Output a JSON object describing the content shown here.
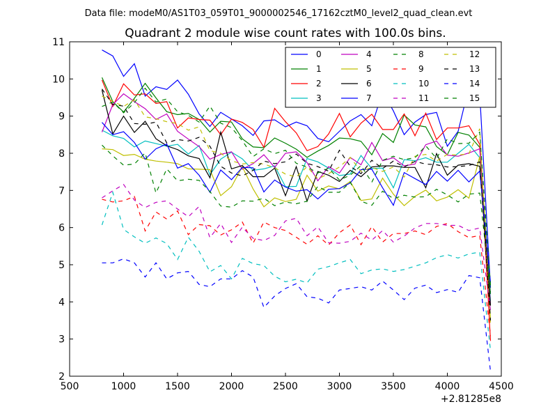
{
  "header": {
    "data_file": "Data file: modeM0/AS1T03_059T01_9000002546_17162cztM0_level2_quad_clean.evt"
  },
  "chart_data": {
    "type": "line",
    "title": "Quadrant 2 module wise count rates with 100.0s bins.",
    "xlabel": "",
    "ylabel": "",
    "x_offset_label": "+2.81285e8",
    "xlim": [
      500,
      4500
    ],
    "ylim": [
      2,
      11
    ],
    "xticks": [
      500,
      1000,
      1500,
      2000,
      2500,
      3000,
      3500,
      4000,
      4500
    ],
    "yticks": [
      2,
      3,
      4,
      5,
      6,
      7,
      8,
      9,
      10,
      11
    ],
    "x": [
      800,
      900,
      1000,
      1100,
      1200,
      1300,
      1400,
      1500,
      1600,
      1700,
      1800,
      1900,
      2000,
      2100,
      2200,
      2300,
      2400,
      2500,
      2600,
      2700,
      2800,
      2900,
      3000,
      3100,
      3200,
      3300,
      3400,
      3500,
      3600,
      3700,
      3800,
      3900,
      4000,
      4100,
      4200,
      4300,
      4400
    ],
    "legend_position": "upper-right",
    "grid": false,
    "series": [
      {
        "name": "0",
        "color": "#0000ff",
        "dash": "solid",
        "values": [
          10.78,
          10.62,
          10.07,
          10.41,
          9.54,
          9.79,
          9.72,
          9.97,
          9.59,
          9.06,
          8.72,
          9.1,
          8.92,
          8.74,
          8.48,
          8.87,
          8.9,
          8.71,
          8.84,
          8.74,
          8.4,
          8.31,
          8.59,
          8.87,
          9.04,
          8.74,
          9.66,
          9.14,
          8.5,
          8.84,
          9.04,
          9.1,
          8.19,
          8.59,
          9.79,
          9.61,
          4.38
        ]
      },
      {
        "name": "1",
        "color": "#008000",
        "dash": "solid",
        "values": [
          10.04,
          9.39,
          9.11,
          9.48,
          9.88,
          9.49,
          9.12,
          9.04,
          9.07,
          8.91,
          8.57,
          8.86,
          8.84,
          8.39,
          8.17,
          8.15,
          8.41,
          8.27,
          8.11,
          7.89,
          8.06,
          8.21,
          8.41,
          8.39,
          8.32,
          7.96,
          8.53,
          8.29,
          9.03,
          8.76,
          8.71,
          8.18,
          7.96,
          8.56,
          8.49,
          8.16,
          4.21
        ]
      },
      {
        "name": "2",
        "color": "#ff0000",
        "dash": "solid",
        "values": [
          9.97,
          9.26,
          9.87,
          9.57,
          9.6,
          9.34,
          9.39,
          8.68,
          8.95,
          8.91,
          8.89,
          8.5,
          8.92,
          8.83,
          8.64,
          8.16,
          9.21,
          8.85,
          8.55,
          8.07,
          8.18,
          8.52,
          9.07,
          8.44,
          8.81,
          9.05,
          8.64,
          8.64,
          9.06,
          8.47,
          9.08,
          8.37,
          8.68,
          8.68,
          8.74,
          8.24,
          2.95
        ]
      },
      {
        "name": "3",
        "color": "#00bfbf",
        "dash": "solid",
        "values": [
          8.62,
          8.47,
          8.4,
          8.17,
          8.33,
          8.26,
          8.19,
          8.24,
          7.98,
          8.21,
          7.42,
          7.84,
          8.03,
          7.85,
          7.54,
          7.58,
          7.66,
          7.1,
          7.11,
          7.86,
          7.77,
          7.6,
          7.4,
          7.44,
          7.94,
          7.59,
          7.6,
          7.07,
          7.83,
          7.8,
          7.88,
          7.76,
          7.76,
          8.0,
          8.24,
          7.88,
          4.02
        ]
      },
      {
        "name": "4",
        "color": "#bf00bf",
        "dash": "solid",
        "values": [
          8.57,
          9.31,
          9.6,
          9.39,
          9.2,
          8.91,
          9.06,
          8.59,
          8.38,
          8.18,
          7.84,
          7.97,
          8.04,
          7.57,
          7.72,
          7.96,
          7.62,
          8.0,
          8.04,
          7.75,
          7.26,
          7.64,
          7.47,
          7.89,
          7.69,
          8.29,
          7.8,
          7.88,
          7.66,
          7.71,
          8.23,
          8.33,
          7.95,
          7.92,
          8.01,
          8.12,
          3.93
        ]
      },
      {
        "name": "5",
        "color": "#bfbf00",
        "dash": "solid",
        "values": [
          8.12,
          8.1,
          7.94,
          7.97,
          7.84,
          7.79,
          7.76,
          7.72,
          7.58,
          7.57,
          7.56,
          6.86,
          7.1,
          7.64,
          7.04,
          6.56,
          6.8,
          6.7,
          6.76,
          7.41,
          6.98,
          7.12,
          7.04,
          7.24,
          6.73,
          6.77,
          7.33,
          6.9,
          6.59,
          6.84,
          7.01,
          6.72,
          6.82,
          7.02,
          6.79,
          7.91,
          3.56
        ]
      },
      {
        "name": "6",
        "color": "#000000",
        "dash": "solid",
        "values": [
          9.7,
          8.52,
          9.0,
          8.56,
          8.86,
          8.39,
          8.2,
          8.1,
          7.93,
          7.86,
          7.34,
          8.57,
          7.58,
          7.67,
          7.37,
          7.37,
          7.6,
          6.86,
          7.64,
          6.71,
          7.51,
          7.41,
          7.24,
          7.54,
          7.37,
          7.63,
          7.66,
          7.66,
          7.62,
          7.62,
          7.07,
          7.99,
          7.41,
          7.68,
          7.72,
          7.65,
          3.9
        ]
      },
      {
        "name": "7",
        "color": "#0000ff",
        "dash": "solid",
        "values": [
          8.83,
          8.5,
          8.58,
          8.29,
          7.84,
          8.12,
          8.25,
          7.6,
          7.72,
          7.41,
          6.95,
          7.55,
          7.29,
          7.62,
          7.61,
          6.96,
          7.28,
          7.09,
          6.98,
          7.02,
          6.77,
          7.03,
          7.05,
          7.2,
          7.56,
          7.57,
          7.07,
          6.6,
          7.48,
          7.32,
          7.16,
          7.51,
          7.25,
          7.54,
          7.23,
          7.52,
          4.52
        ]
      },
      {
        "name": "8",
        "color": "#008000",
        "dash": "dashed",
        "values": [
          8.22,
          7.93,
          7.68,
          7.71,
          8.01,
          6.93,
          7.58,
          7.26,
          7.3,
          7.27,
          6.97,
          6.58,
          6.55,
          6.72,
          6.71,
          6.79,
          6.59,
          6.69,
          6.64,
          6.71,
          7.11,
          6.95,
          6.95,
          7.22,
          6.71,
          6.6,
          6.98,
          6.78,
          6.87,
          6.82,
          6.83,
          7.03,
          6.88,
          6.69,
          6.9,
          6.93,
          4.26
        ]
      },
      {
        "name": "9",
        "color": "#ff0000",
        "dash": "dashed",
        "values": [
          6.76,
          6.69,
          6.72,
          6.84,
          5.91,
          6.42,
          6.23,
          6.45,
          5.81,
          6.08,
          6.05,
          5.8,
          5.94,
          6.15,
          5.58,
          6.15,
          6.0,
          5.92,
          5.74,
          5.55,
          5.78,
          5.53,
          5.86,
          6.07,
          5.54,
          6.03,
          5.61,
          5.84,
          5.84,
          5.91,
          5.81,
          6.03,
          6.11,
          5.89,
          5.73,
          5.79,
          3.08
        ]
      },
      {
        "name": "10",
        "color": "#00bfbf",
        "dash": "dashed",
        "values": [
          6.07,
          6.95,
          5.95,
          5.75,
          5.58,
          5.72,
          5.57,
          5.14,
          5.74,
          5.36,
          4.81,
          4.98,
          4.62,
          5.17,
          5.03,
          4.98,
          4.69,
          4.54,
          4.61,
          4.51,
          4.88,
          4.95,
          5.05,
          5.14,
          4.76,
          4.86,
          4.89,
          4.82,
          4.87,
          4.96,
          5.05,
          5.19,
          5.27,
          5.18,
          5.29,
          5.34,
          2.69
        ]
      },
      {
        "name": "11",
        "color": "#bf00bf",
        "dash": "dashed",
        "values": [
          6.8,
          6.99,
          7.16,
          6.74,
          6.54,
          6.68,
          6.72,
          6.5,
          6.29,
          6.57,
          5.73,
          6.11,
          5.6,
          6.01,
          5.71,
          5.65,
          5.79,
          6.18,
          6.25,
          5.78,
          6.02,
          5.59,
          5.58,
          5.63,
          5.85,
          5.66,
          5.92,
          5.61,
          5.77,
          5.99,
          6.11,
          6.11,
          6.06,
          6.06,
          5.92,
          5.99,
          3.77
        ]
      },
      {
        "name": "12",
        "color": "#bfbf00",
        "dash": "dashed",
        "values": [
          9.54,
          9.4,
          9.26,
          9.44,
          8.98,
          8.93,
          8.85,
          8.8,
          8.62,
          8.71,
          8.07,
          8.0,
          7.8,
          7.71,
          7.75,
          7.71,
          7.61,
          7.44,
          7.36,
          7.64,
          7.31,
          7.45,
          7.63,
          7.89,
          7.51,
          7.62,
          7.51,
          7.63,
          7.36,
          7.92,
          7.97,
          7.79,
          7.97,
          7.95,
          7.99,
          8.66,
          3.38
        ]
      },
      {
        "name": "13",
        "color": "#000000",
        "dash": "dashed",
        "values": [
          9.73,
          9.31,
          9.27,
          8.8,
          8.78,
          8.84,
          8.28,
          8.37,
          8.33,
          8.43,
          8.19,
          7.65,
          7.47,
          7.39,
          7.54,
          7.79,
          7.72,
          7.77,
          7.98,
          7.73,
          7.64,
          7.52,
          8.08,
          7.65,
          7.45,
          7.81,
          7.59,
          7.79,
          7.63,
          7.78,
          7.71,
          7.69,
          7.63,
          7.64,
          7.67,
          7.77,
          3.5
        ]
      },
      {
        "name": "14",
        "color": "#0000ff",
        "dash": "dashed",
        "values": [
          5.05,
          5.05,
          5.16,
          5.05,
          4.67,
          5.05,
          4.62,
          4.78,
          4.82,
          4.47,
          4.41,
          4.62,
          4.62,
          4.84,
          4.67,
          3.85,
          4.16,
          4.36,
          4.49,
          4.14,
          4.1,
          3.97,
          4.32,
          4.36,
          4.41,
          4.32,
          4.56,
          4.32,
          4.06,
          4.37,
          4.45,
          4.25,
          4.33,
          4.26,
          4.71,
          4.65,
          2.13
        ]
      },
      {
        "name": "15",
        "color": "#008000",
        "dash": "dashed",
        "values": [
          9.26,
          9.38,
          9.09,
          9.36,
          9.75,
          9.38,
          9.46,
          9.12,
          9.02,
          8.84,
          9.27,
          8.81,
          8.69,
          8.34,
          7.91,
          8.12,
          7.99,
          8.08,
          7.73,
          7.63,
          7.47,
          7.6,
          7.28,
          7.41,
          7.67,
          7.22,
          7.81,
          7.92,
          7.83,
          7.88,
          8.2,
          7.86,
          8.39,
          8.26,
          8.27,
          8.57,
          4.43
        ]
      }
    ]
  }
}
